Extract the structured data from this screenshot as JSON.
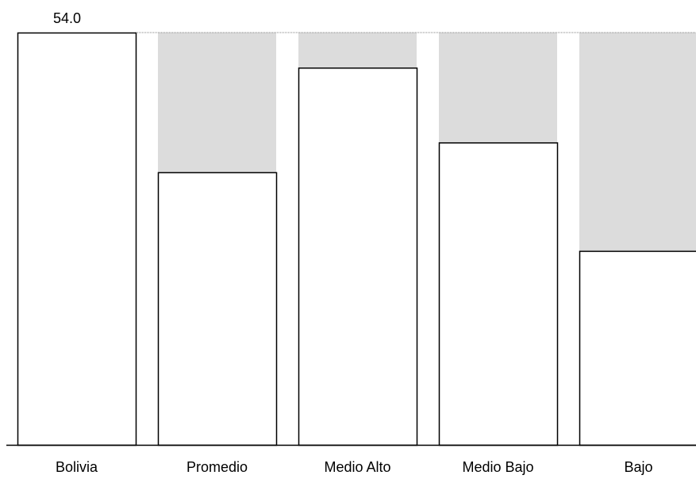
{
  "chart_data": {
    "type": "bar",
    "categories": [
      "Bolivia",
      "Promedio",
      "Medio Alto",
      "Medio Bajo",
      "Bajo"
    ],
    "values": [
      54.0,
      35.7,
      49.4,
      39.6,
      25.4
    ],
    "reference_value": 54.0,
    "data_labels": [
      "54.0",
      "",
      "",
      "",
      ""
    ],
    "title": "",
    "xlabel": "",
    "ylabel": "",
    "ylim": [
      0,
      54.0
    ],
    "grid": false,
    "legend": "none",
    "colors": {
      "bar_fill": "#ffffff",
      "bar_stroke": "#000000",
      "gap_fill": "#dcdcdc",
      "reference_line": "#808080",
      "axis": "#000000"
    }
  }
}
